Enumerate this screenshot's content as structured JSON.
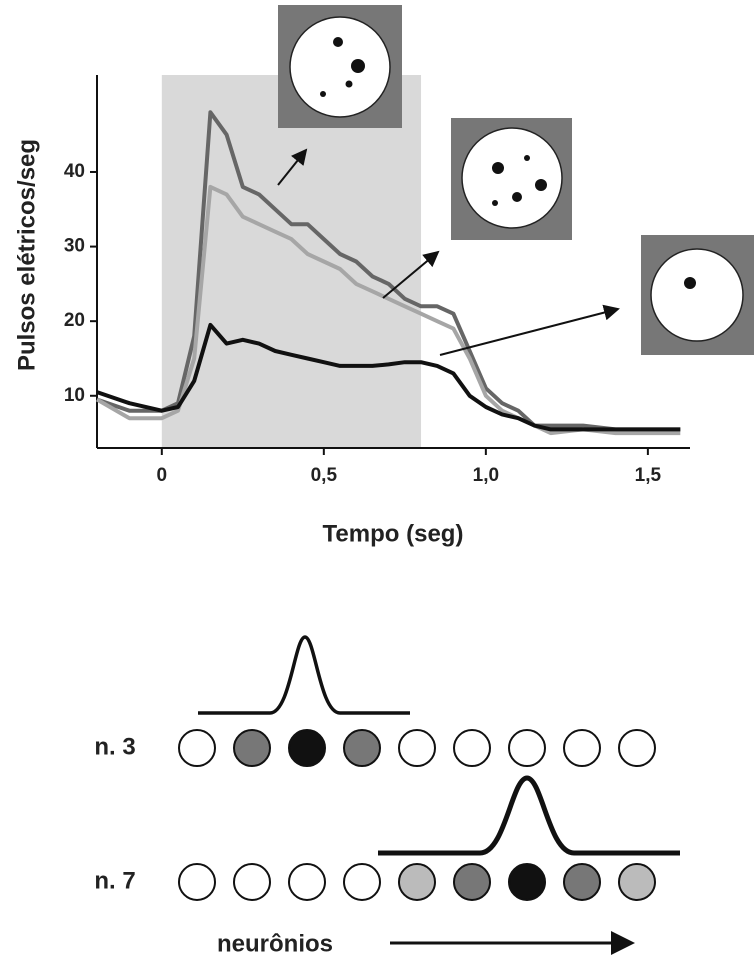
{
  "chart_data": {
    "type": "line",
    "xlabel": "Tempo (seg)",
    "ylabel": "Pulsos elétricos/seg",
    "x": [
      -0.2,
      -0.1,
      0,
      0.05,
      0.1,
      0.15,
      0.2,
      0.25,
      0.3,
      0.35,
      0.4,
      0.45,
      0.5,
      0.55,
      0.6,
      0.65,
      0.7,
      0.75,
      0.8,
      0.85,
      0.9,
      0.95,
      1.0,
      1.05,
      1.1,
      1.15,
      1.2,
      1.3,
      1.4,
      1.5,
      1.6
    ],
    "series": [
      {
        "color": "#666666",
        "values": [
          9.5,
          8,
          8,
          9,
          18,
          48,
          45,
          38,
          37,
          35,
          33,
          33,
          31,
          29,
          28,
          26,
          25,
          23,
          22,
          22,
          21,
          16,
          11,
          9,
          8,
          6,
          6,
          6,
          5.5,
          5.5,
          5.5
        ]
      },
      {
        "color": "#a6a6a6",
        "values": [
          9.5,
          7,
          7,
          8,
          15,
          38,
          37,
          34,
          33,
          32,
          31,
          29,
          28,
          27,
          25,
          24,
          23,
          22,
          21,
          20,
          19,
          15,
          10,
          8,
          7,
          6,
          5,
          5.5,
          5,
          5,
          5
        ]
      },
      {
        "color": "#111111",
        "values": [
          10.5,
          9,
          8,
          8.5,
          12,
          19.5,
          17,
          17.5,
          17,
          16,
          15.5,
          15,
          14.5,
          14,
          14,
          14,
          14.2,
          14.5,
          14.5,
          14,
          13,
          10,
          8.5,
          7.5,
          7,
          6,
          5.5,
          5.5,
          5.5,
          5.5,
          5.5
        ]
      }
    ],
    "xlim": [
      -0.2,
      1.63
    ],
    "ylim": [
      3,
      53
    ],
    "xticks": [
      0,
      {
        "value": 0.5,
        "label": "0,5"
      },
      {
        "value": 1.0,
        "label": "1,0"
      },
      {
        "value": 1.5,
        "label": "1,5"
      }
    ],
    "yticks": [
      10,
      20,
      30,
      40
    ],
    "shade": [
      0,
      0.8
    ],
    "shade_color": "#d9d9d9"
  },
  "diagram": {
    "rows": [
      {
        "label": "n. 3",
        "fills": [
          "#ffffff",
          "#777777",
          "#111111",
          "#777777",
          "#ffffff",
          "#ffffff",
          "#ffffff",
          "#ffffff",
          "#ffffff"
        ]
      },
      {
        "label": "n. 7",
        "fills": [
          "#ffffff",
          "#ffffff",
          "#ffffff",
          "#ffffff",
          "#bbbbbb",
          "#777777",
          "#111111",
          "#777777",
          "#bbbbbb"
        ]
      }
    ],
    "axis_label": "neurônios"
  }
}
